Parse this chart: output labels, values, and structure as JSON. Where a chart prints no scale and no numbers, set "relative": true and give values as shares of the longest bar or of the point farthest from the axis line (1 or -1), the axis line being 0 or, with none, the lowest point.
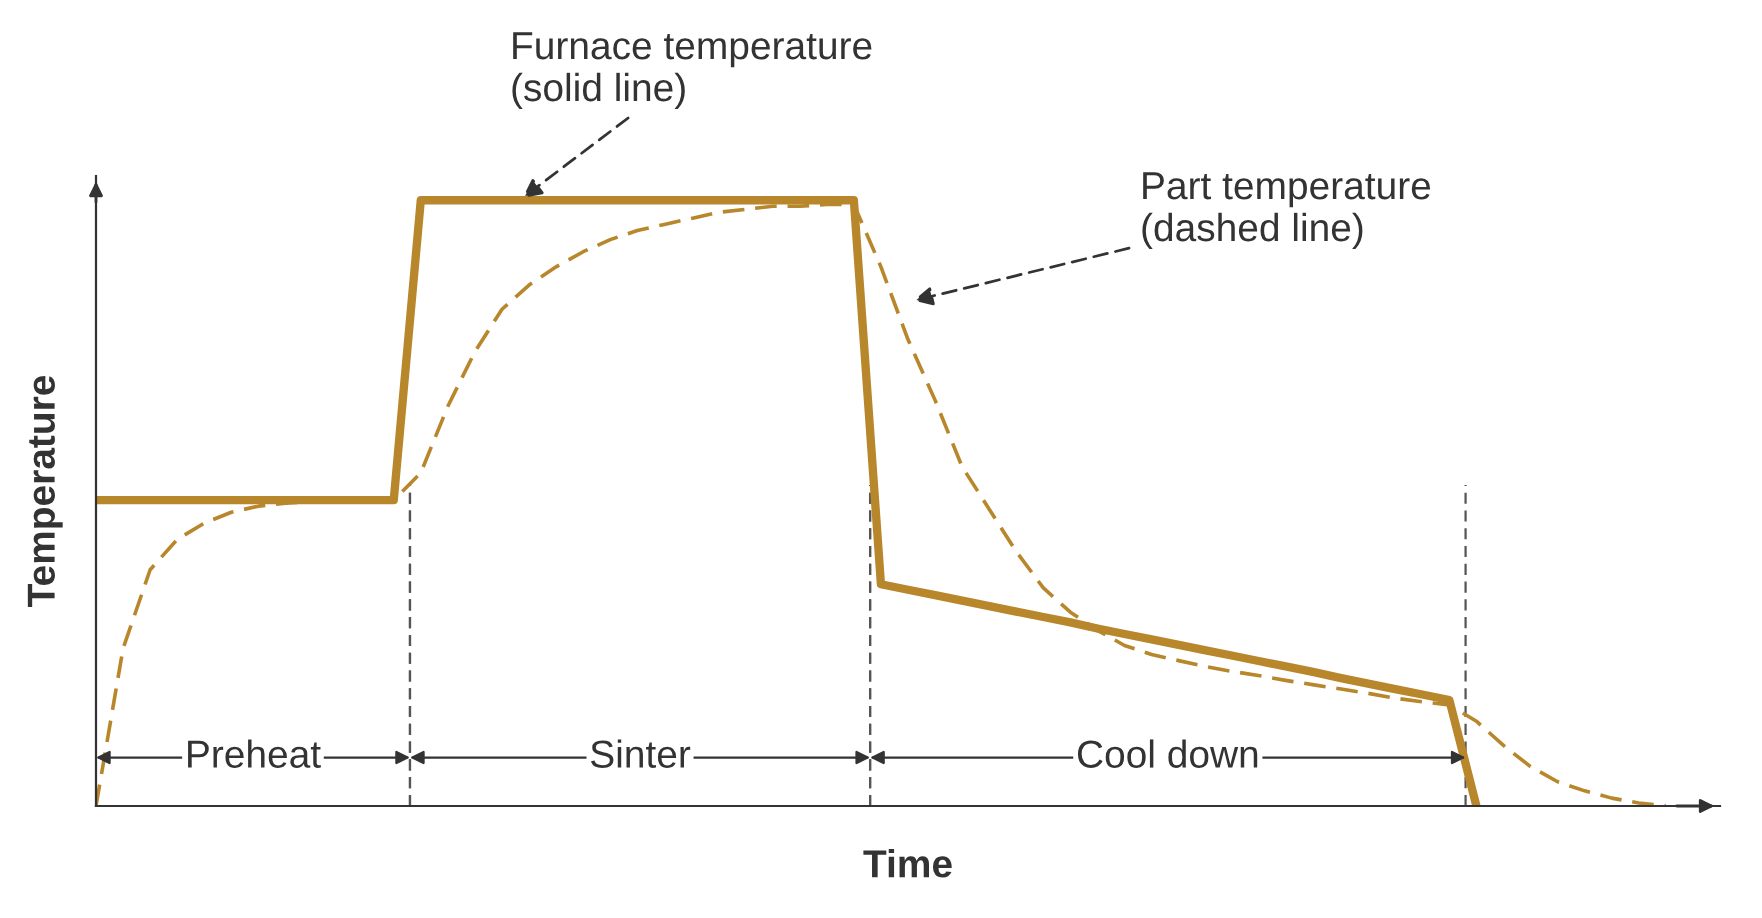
{
  "chart_data": {
    "type": "line",
    "relative": true,
    "xlabel": "Time",
    "ylabel": "Temperature",
    "categories": [
      null,
      null,
      null,
      null,
      null,
      null,
      null,
      null,
      null,
      null,
      null,
      null,
      null,
      null,
      null,
      null,
      null,
      null,
      null,
      null,
      null,
      null,
      null,
      null,
      null,
      null,
      null,
      null,
      null,
      null,
      null,
      null,
      null,
      null,
      null,
      null,
      null,
      null,
      null,
      null,
      null,
      null,
      null,
      null,
      null,
      null,
      null,
      null,
      null,
      null,
      null,
      null,
      null,
      null,
      null,
      null,
      null,
      null,
      null
    ],
    "series": [
      {
        "color": "#b8862b",
        "line_style": "solid",
        "values": [
          0.505,
          0.505,
          0.505,
          0.505,
          0.505,
          0.505,
          0.505,
          0.505,
          0.505,
          0.505,
          0.505,
          0.505,
          1.0,
          1.0,
          1.0,
          1.0,
          1.0,
          1.0,
          1.0,
          1.0,
          1.0,
          1.0,
          1.0,
          1.0,
          1.0,
          1.0,
          1.0,
          1.0,
          1.0,
          0.366,
          0.357,
          0.348,
          0.339,
          0.33,
          0.321,
          0.312,
          0.303,
          0.293,
          0.284,
          0.275,
          0.266,
          0.257,
          0.248,
          0.239,
          0.23,
          0.221,
          0.211,
          0.202,
          0.193,
          0.184,
          0.175,
          0,
          null,
          null,
          null,
          null,
          null,
          null,
          null
        ]
      },
      {
        "color": "#b8862b",
        "line_style": "dashed",
        "values": [
          0,
          0.26,
          0.39,
          0.44,
          0.467,
          0.485,
          0.495,
          0.5,
          0.502,
          0.503,
          0.504,
          0.505,
          0.55,
          0.66,
          0.75,
          0.82,
          0.86,
          0.89,
          0.915,
          0.935,
          0.95,
          0.96,
          0.97,
          0.98,
          0.985,
          0.99,
          0.99,
          0.993,
          0.993,
          0.89,
          0.77,
          0.67,
          0.56,
          0.49,
          0.42,
          0.36,
          0.32,
          0.29,
          0.265,
          0.25,
          0.24,
          0.23,
          0.222,
          0.215,
          0.207,
          0.2,
          0.193,
          0.186,
          0.178,
          0.172,
          0.167,
          0.14,
          0.1,
          0.065,
          0.04,
          0.025,
          0.013,
          0.005,
          0
        ]
      }
    ],
    "annotations": [
      "Furnace temperature\n(solid line)",
      "Part temperature\n(dashed line)",
      "Preheat",
      "Sinter",
      "Cool down"
    ]
  }
}
